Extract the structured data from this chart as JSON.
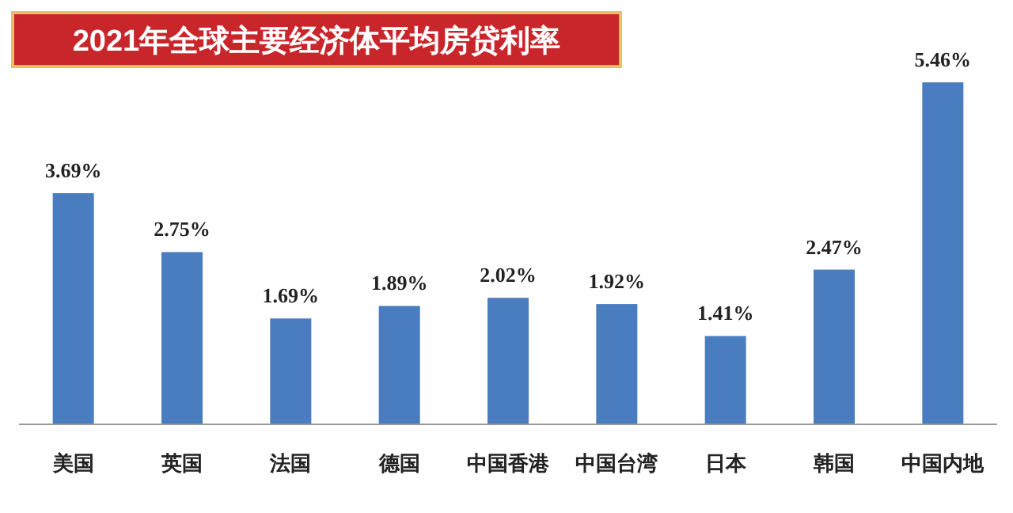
{
  "chart_data": {
    "type": "bar",
    "title": "2021年全球主要经济体平均房贷利率",
    "categories": [
      "美国",
      "英国",
      "法国",
      "德国",
      "中国香港",
      "中国台湾",
      "日本",
      "韩国",
      "中国内地"
    ],
    "values": [
      3.69,
      2.75,
      1.69,
      1.89,
      2.02,
      1.92,
      1.41,
      2.47,
      5.46
    ],
    "value_labels": [
      "3.69%",
      "2.75%",
      "1.69%",
      "1.89%",
      "2.02%",
      "1.92%",
      "1.41%",
      "2.47%",
      "5.46%"
    ],
    "color": "#4a7cc0"
  }
}
